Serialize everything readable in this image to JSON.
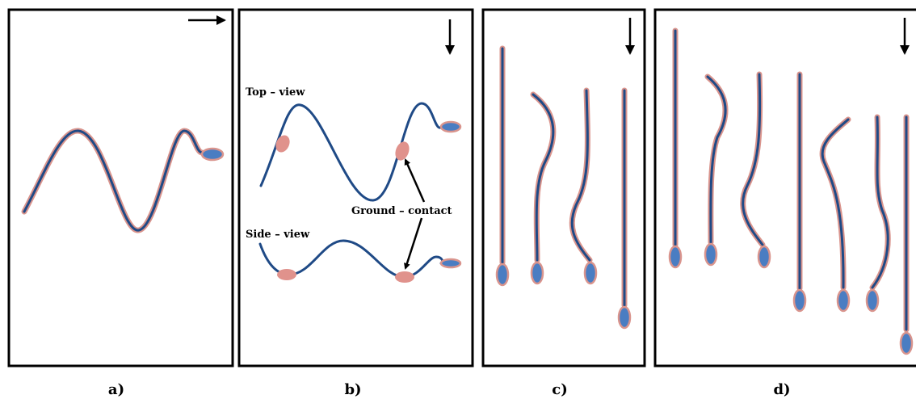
{
  "panels": [
    {
      "label": "a)"
    },
    {
      "label": "b)"
    },
    {
      "label": "c)"
    },
    {
      "label": "d)"
    }
  ],
  "annotations": {
    "top_view": "Top – view",
    "side_view": "Side – view",
    "ground_contact": "Ground – contact"
  }
}
